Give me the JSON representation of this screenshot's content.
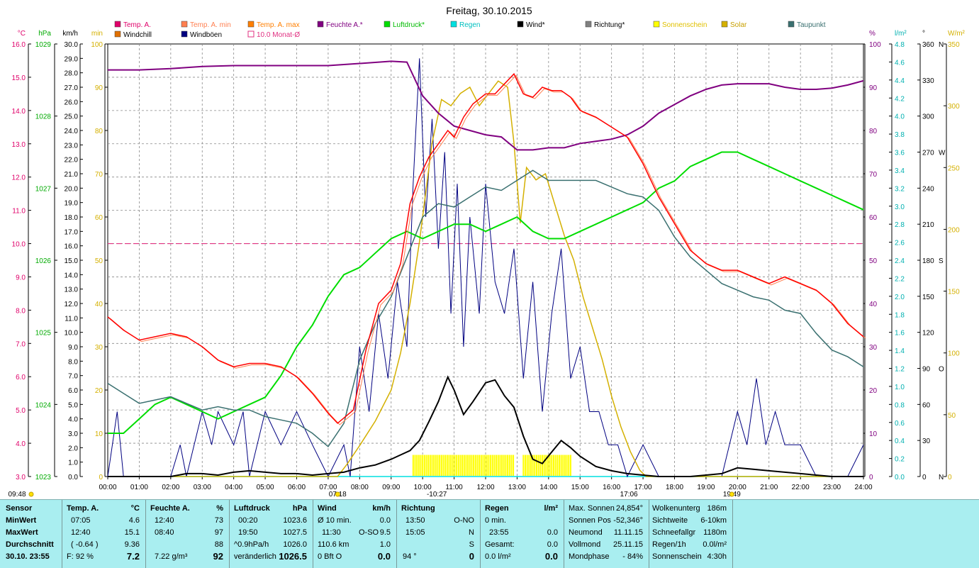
{
  "title": "Freitag, 30.10.2015",
  "colors": {
    "temp": "#ff0000",
    "temp_min": "#ff7f50",
    "windchill": "#e07000",
    "windboeen": "#000080",
    "feuchte": "#800080",
    "luftdruck": "#00dd00",
    "regen": "#00e0e0",
    "wind": "#000000",
    "richtung": "#808080",
    "sonnenschein": "#ffff00",
    "solar": "#d4b000",
    "taupunkt": "#3a7070",
    "monat_avg": "#e03080"
  },
  "legend": [
    {
      "label": "Temp. A.",
      "color": "#e0006a",
      "box": "fill"
    },
    {
      "label": "Temp. A. min",
      "color": "#ff7f50",
      "box": "fill"
    },
    {
      "label": "Temp. A. max",
      "color": "#ff7f00",
      "box": "fill"
    },
    {
      "label": "Feuchte A.*",
      "color": "#800080",
      "box": "fill"
    },
    {
      "label": "Luftdruck*",
      "color": "#00dd00",
      "box": "fill"
    },
    {
      "label": "Regen",
      "color": "#00e0e0",
      "box": "fill"
    },
    {
      "label": "Wind*",
      "color": "#000000",
      "box": "fill"
    },
    {
      "label": "Richtung*",
      "color": "#808080",
      "box": "fill"
    },
    {
      "label": "Sonnenschein",
      "color": "#ffff00",
      "box": "fill"
    },
    {
      "label": "Solar",
      "color": "#d4b000",
      "box": "fill"
    },
    {
      "label": "Taupunkt",
      "color": "#3a7070",
      "box": "fill"
    },
    {
      "label": "Windchill",
      "color": "#e07000",
      "box": "fill"
    },
    {
      "label": "Windböen",
      "color": "#000080",
      "box": "fill"
    },
    {
      "label": "10.0 Monat-Ø",
      "color": "#e03080",
      "box": "outline"
    }
  ],
  "axes": {
    "celsius": {
      "unit": "°C",
      "min": 3.0,
      "max": 16.0,
      "step": 1.0,
      "color": "#e0006a"
    },
    "hpa": {
      "unit": "hPa",
      "min": 1023,
      "max": 1029,
      "step": 1,
      "color": "#00aa00"
    },
    "kmh": {
      "unit": "km/h",
      "min": 0,
      "max": 30,
      "step": 1,
      "color": "#000000"
    },
    "min": {
      "unit": "min",
      "min": 0,
      "max": 100,
      "step": 10,
      "color": "#d4b000"
    },
    "percent": {
      "unit": "%",
      "min": 0,
      "max": 100,
      "step": 10,
      "color": "#800080"
    },
    "lm2": {
      "unit": "l/m²",
      "min": 0,
      "max": 4.8,
      "step": 0.2,
      "color": "#00b0b0"
    },
    "deg": {
      "unit": "°",
      "min": 0,
      "max": 360,
      "step": 30,
      "color": "#000000",
      "dir_labels": {
        "0": "N",
        "90": "O",
        "180": "S",
        "270": "W",
        "360": "N"
      }
    },
    "wm2": {
      "unit": "W/m²",
      "min": 0,
      "max": 350,
      "step": 50,
      "color": "#d4b000"
    }
  },
  "x_ticks": [
    "00:00",
    "01:00",
    "02:00",
    "03:00",
    "04:00",
    "05:00",
    "06:00",
    "07:00",
    "08:00",
    "09:00",
    "10:00",
    "11:00",
    "12:00",
    "13:00",
    "14:00",
    "15:00",
    "16:00",
    "17:00",
    "18:00",
    "19:00",
    "20:00",
    "21:00",
    "22:00",
    "23:00",
    "24:00"
  ],
  "time_markers": [
    {
      "label": "09:48",
      "hour": -3.3
    },
    {
      "label": "07:18",
      "hour": 7.3
    },
    {
      "label": "-10:27",
      "hour": 10.45
    },
    {
      "label": "17:06",
      "hour": 16.55
    },
    {
      "label": "19:49",
      "hour": 19.82
    }
  ],
  "chart_data": {
    "type": "line",
    "title": "Freitag, 30.10.2015",
    "x_unit": "hour",
    "xlim": [
      0,
      24
    ],
    "monthly_avg_temp": 10.0,
    "series": [
      {
        "name": "Temp. A.",
        "axis": "celsius",
        "x": [
          0,
          0.5,
          1,
          1.5,
          2,
          2.5,
          3,
          3.5,
          4,
          4.5,
          5,
          5.5,
          6,
          6.5,
          7,
          7.3,
          7.8,
          8.2,
          8.6,
          9,
          9.3,
          9.6,
          9.9,
          10.2,
          10.5,
          10.8,
          11,
          11.3,
          11.6,
          12,
          12.3,
          12.6,
          12.9,
          13.2,
          13.5,
          13.8,
          14.1,
          14.4,
          14.7,
          15,
          15.5,
          16,
          16.5,
          17,
          17.5,
          18,
          18.5,
          19,
          19.5,
          20,
          20.5,
          21,
          21.5,
          22,
          22.5,
          23,
          23.5,
          24
        ],
        "values": [
          7.8,
          7.4,
          7.1,
          7.2,
          7.3,
          7.2,
          6.9,
          6.5,
          6.3,
          6.4,
          6.4,
          6.3,
          6.0,
          5.5,
          4.9,
          4.6,
          5.0,
          6.8,
          8.2,
          8.6,
          9.4,
          11.2,
          12.0,
          12.6,
          13.0,
          13.4,
          13.2,
          13.8,
          14.2,
          14.5,
          14.5,
          14.8,
          15.1,
          14.5,
          14.4,
          14.7,
          14.6,
          14.6,
          14.4,
          14.0,
          13.8,
          13.5,
          13.2,
          12.4,
          11.4,
          10.6,
          9.8,
          9.4,
          9.2,
          9.2,
          9.0,
          8.8,
          9.0,
          8.8,
          8.6,
          8.2,
          7.6,
          7.2
        ]
      },
      {
        "name": "Feuchte A.*",
        "axis": "percent",
        "x": [
          0,
          1,
          2,
          3,
          4,
          5,
          6,
          7,
          8,
          9,
          9.5,
          10,
          10.5,
          11,
          11.5,
          12,
          12.5,
          13,
          13.5,
          14,
          14.5,
          15,
          15.5,
          16,
          16.5,
          17,
          17.5,
          18,
          18.5,
          19,
          19.5,
          20,
          20.5,
          21,
          21.5,
          22,
          22.5,
          23,
          23.5,
          24
        ],
        "values": [
          94,
          94,
          94.3,
          94.8,
          95,
          95,
          95,
          95,
          95.5,
          96,
          95.8,
          88,
          84,
          81,
          80,
          79,
          78.5,
          75.5,
          75.5,
          76,
          76,
          77,
          77.5,
          78,
          79,
          81,
          84,
          86,
          88,
          89.5,
          90.5,
          90.8,
          90.8,
          90.8,
          90,
          89.5,
          89.5,
          89.8,
          90.5,
          91.5
        ]
      },
      {
        "name": "Luftdruck*",
        "axis": "hpa",
        "x": [
          0,
          0.5,
          1,
          1.5,
          2,
          2.5,
          3,
          3.5,
          4,
          4.5,
          5,
          5.5,
          6,
          6.5,
          7,
          7.5,
          8,
          8.5,
          9,
          9.5,
          10,
          10.5,
          11,
          11.5,
          12,
          12.5,
          13,
          13.5,
          14,
          14.5,
          15,
          15.5,
          16,
          16.5,
          17,
          17.5,
          18,
          18.5,
          19,
          19.5,
          20,
          20.5,
          21,
          21.5,
          22,
          22.5,
          23,
          23.5,
          24
        ],
        "values": [
          1023.6,
          1023.6,
          1023.8,
          1024.0,
          1024.1,
          1024.0,
          1023.9,
          1023.8,
          1023.9,
          1024.0,
          1024.1,
          1024.4,
          1024.8,
          1025.1,
          1025.5,
          1025.8,
          1025.9,
          1026.1,
          1026.3,
          1026.4,
          1026.3,
          1026.4,
          1026.5,
          1026.5,
          1026.4,
          1026.5,
          1026.6,
          1026.4,
          1026.3,
          1026.3,
          1026.4,
          1026.5,
          1026.6,
          1026.7,
          1026.8,
          1027.0,
          1027.1,
          1027.3,
          1027.4,
          1027.5,
          1027.5,
          1027.4,
          1027.3,
          1027.2,
          1027.1,
          1027.0,
          1026.9,
          1026.8,
          1026.7
        ]
      },
      {
        "name": "Taupunkt",
        "axis": "celsius",
        "x": [
          0,
          0.5,
          1,
          1.5,
          2,
          2.5,
          3,
          3.5,
          4,
          4.5,
          5,
          5.5,
          6,
          6.5,
          7,
          7.5,
          8,
          8.5,
          9,
          9.5,
          10,
          10.5,
          11,
          11.5,
          12,
          12.5,
          13,
          13.5,
          14,
          14.5,
          15,
          15.5,
          16,
          16.5,
          17,
          17.5,
          18,
          18.5,
          19,
          19.5,
          20,
          20.5,
          21,
          21.5,
          22,
          22.5,
          23,
          23.5,
          24
        ],
        "values": [
          5.8,
          5.5,
          5.2,
          5.3,
          5.4,
          5.2,
          5.0,
          5.1,
          5.0,
          5.0,
          4.8,
          4.7,
          4.6,
          4.3,
          3.9,
          4.6,
          6.5,
          7.6,
          8.4,
          9.6,
          10.8,
          11.2,
          11.1,
          11.4,
          11.7,
          11.6,
          11.9,
          12.2,
          11.9,
          11.9,
          11.9,
          11.9,
          11.7,
          11.5,
          11.4,
          11.0,
          10.2,
          9.6,
          9.2,
          8.8,
          8.6,
          8.4,
          8.3,
          8.0,
          7.9,
          7.3,
          6.8,
          6.6,
          6.3
        ]
      },
      {
        "name": "Windböen",
        "axis": "kmh",
        "x": [
          0,
          0.3,
          0.5,
          1,
          1.5,
          2,
          2.3,
          2.5,
          3,
          3.3,
          3.5,
          4,
          4.3,
          4.5,
          5,
          5.5,
          6,
          6.5,
          7,
          7.5,
          7.7,
          8,
          8.3,
          8.6,
          8.9,
          9.2,
          9.5,
          9.7,
          9.9,
          10.1,
          10.3,
          10.5,
          10.7,
          10.9,
          11.1,
          11.3,
          11.5,
          11.8,
          12,
          12.3,
          12.6,
          12.9,
          13.2,
          13.5,
          13.8,
          14.1,
          14.4,
          14.7,
          15,
          15.3,
          15.6,
          15.9,
          16.2,
          16.5,
          17,
          17.5,
          18,
          18.5,
          19,
          19.5,
          20,
          20.3,
          20.6,
          20.9,
          21.2,
          21.5,
          22,
          22.5,
          23,
          23.5,
          24
        ],
        "values": [
          0,
          4.5,
          0,
          0,
          0,
          0,
          2.2,
          0,
          4.5,
          2.2,
          4.5,
          2.2,
          4.5,
          0,
          4.5,
          2.2,
          4.5,
          2.2,
          0,
          2.2,
          0,
          9.0,
          4.5,
          11.3,
          6.8,
          13.5,
          9.0,
          20.3,
          29.0,
          18.0,
          24.8,
          15.8,
          22.5,
          11.3,
          20.3,
          9.0,
          18.0,
          11.3,
          20.3,
          13.5,
          11.3,
          15.8,
          6.8,
          13.5,
          4.5,
          11.3,
          15.8,
          6.8,
          9.0,
          4.5,
          4.5,
          2.2,
          2.2,
          0,
          2.2,
          0,
          0,
          0,
          0,
          0,
          4.5,
          2.2,
          6.8,
          2.2,
          4.5,
          2.2,
          2.2,
          0,
          0,
          0,
          2.2
        ]
      },
      {
        "name": "Wind*",
        "axis": "kmh",
        "x": [
          0,
          1,
          2,
          2.5,
          3,
          3.5,
          4,
          4.5,
          5,
          5.5,
          6,
          6.5,
          7,
          7.5,
          8,
          8.5,
          9,
          9.3,
          9.6,
          9.9,
          10.2,
          10.5,
          10.8,
          11,
          11.3,
          11.6,
          12,
          12.3,
          12.6,
          12.9,
          13.2,
          13.5,
          13.8,
          14.1,
          14.4,
          14.7,
          15,
          15.5,
          16,
          16.5,
          17,
          17.5,
          18,
          18.5,
          19,
          19.5,
          20,
          20.5,
          21,
          21.5,
          22,
          22.5,
          23,
          23.5,
          24
        ],
        "values": [
          0,
          0,
          0,
          0.2,
          0.2,
          0.1,
          0.3,
          0.4,
          0.3,
          0.2,
          0.2,
          0.1,
          0.2,
          0.3,
          0.6,
          0.8,
          1.2,
          1.5,
          1.8,
          2.5,
          3.8,
          5.2,
          6.9,
          6.0,
          4.3,
          5.2,
          6.5,
          6.7,
          5.6,
          4.8,
          2.8,
          1.2,
          0.9,
          1.7,
          2.5,
          2.0,
          1.4,
          0.7,
          0.4,
          0.2,
          0.1,
          0,
          0,
          0,
          0.1,
          0.2,
          0.6,
          0.5,
          0.4,
          0.3,
          0.2,
          0.1,
          0,
          0,
          0
        ]
      },
      {
        "name": "Solar",
        "axis": "wm2",
        "x": [
          0,
          7.3,
          7.6,
          8,
          8.5,
          9,
          9.3,
          9.6,
          9.9,
          10.1,
          10.3,
          10.6,
          10.9,
          11.2,
          11.5,
          11.8,
          12.1,
          12.4,
          12.7,
          12.9,
          13.1,
          13.3,
          13.6,
          13.9,
          14.2,
          14.5,
          14.8,
          15.1,
          15.4,
          15.7,
          16,
          16.3,
          16.6,
          16.9,
          17.1,
          24
        ],
        "values": [
          0,
          0,
          10,
          25,
          45,
          70,
          100,
          140,
          190,
          230,
          270,
          305,
          300,
          310,
          315,
          300,
          310,
          320,
          315,
          270,
          205,
          250,
          240,
          245,
          220,
          195,
          175,
          145,
          120,
          95,
          65,
          40,
          20,
          5,
          0,
          0
        ]
      },
      {
        "name": "Sonnenschein",
        "axis": "min",
        "x": [
          9.7,
          12.9,
          13.2,
          14.75
        ],
        "values": [
          5,
          5,
          5,
          5
        ]
      },
      {
        "name": "Regen",
        "axis": "lm2",
        "x": [
          0,
          24
        ],
        "values": [
          0,
          0
        ]
      }
    ]
  },
  "panel": {
    "sensor": {
      "header": "Sensor",
      "rows": [
        "MinWert",
        "MaxWert",
        "Durchschnitt",
        "30.10. 23:55"
      ]
    },
    "temp": {
      "header": "Temp. A.",
      "unit": "°C",
      "min_time": "07:05",
      "min_val": "4.6",
      "max_time": "12:40",
      "max_val": "15.1",
      "avg_text": "( -0.64 )",
      "avg_val": "9.36",
      "now_extra": "F: 92 %",
      "now_val": "7.2"
    },
    "feuchte": {
      "header": "Feuchte A.",
      "unit": "%",
      "min_time": "12:40",
      "min_val": "73",
      "max_time": "08:40",
      "max_val": "97",
      "avg_val": "88",
      "now_extra": "7.22 g/m³",
      "now_val": "92"
    },
    "luftdruck": {
      "header": "Luftdruck",
      "unit": "hPa",
      "min_time": "00:20",
      "min_val": "1023.6",
      "max_time": "19:50",
      "max_val": "1027.5",
      "avg_text": "^0.9hPa/h",
      "avg_val": "1026.0",
      "now_extra": "veränderlich",
      "now_val": "1026.5"
    },
    "wind": {
      "header": "Wind",
      "unit": "km/h",
      "r1_label": "Ø 10 min.",
      "r1_val": "0.0",
      "r2_label": "11:30",
      "r2_dir": "O-SO",
      "r2_val": "9.5",
      "r3_label": "110.6 km",
      "r3_val": "1.0",
      "r4_label": "0 Bft O",
      "r4_val": "0.0"
    },
    "richtung": {
      "header": "Richtung",
      "r1_time": "13:50",
      "r1_val": "O-NO",
      "r2_time": "15:05",
      "r2_val": "N",
      "r3_val": "S",
      "r4_label": "94 °",
      "r4_val": "0"
    },
    "regen": {
      "header": "Regen",
      "unit": "l/m²",
      "r1_label": "0 min.",
      "r2_label": "23:55",
      "r2_val": "0.0",
      "r3_label": "Gesamt:",
      "r3_val": "0.0",
      "r4_label": "0.0 l/m²",
      "r4_val": "0.0"
    },
    "astro": [
      {
        "label": "Max. Sonnen",
        "value": "24,854°"
      },
      {
        "label": "Sonnen Pos",
        "value": "-52,346°"
      },
      {
        "label": "Neumond",
        "value": "11.11.15"
      },
      {
        "label": "Vollmond",
        "value": "25.11.15"
      },
      {
        "label": "Mondphase",
        "value": "- 84%"
      }
    ],
    "misc": [
      {
        "label": "Wolkenunterg",
        "value": "186m"
      },
      {
        "label": "Sichtweite",
        "value": "6-10km"
      },
      {
        "label": "Schneefallgr",
        "value": "1180m"
      },
      {
        "label": "Regen/1h",
        "value": "0.0l/m²"
      },
      {
        "label": "Sonnenschein",
        "value": "4:30h"
      }
    ]
  }
}
